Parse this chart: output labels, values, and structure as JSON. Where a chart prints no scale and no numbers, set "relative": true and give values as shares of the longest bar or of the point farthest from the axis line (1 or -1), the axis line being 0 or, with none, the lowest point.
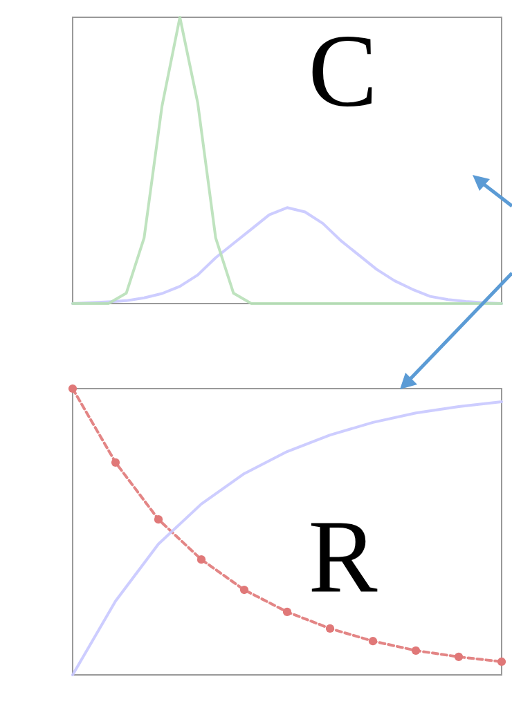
{
  "chart_data": [
    {
      "type": "line",
      "relative": true,
      "tick_labels": false,
      "annotations": [
        "C"
      ],
      "categories": [
        null,
        null,
        null,
        null,
        null,
        null,
        null,
        null,
        null,
        null,
        null,
        null,
        null,
        null,
        null,
        null,
        null,
        null,
        null,
        null,
        null,
        null,
        null,
        null,
        null
      ],
      "series": [
        {
          "color": "#c8c8ff",
          "values": [
            0,
            0.003,
            0.006,
            0.01,
            0.02,
            0.035,
            0.06,
            0.1,
            0.16,
            0.21,
            0.26,
            0.31,
            0.335,
            0.32,
            0.28,
            0.22,
            0.17,
            0.12,
            0.08,
            0.05,
            0.025,
            0.014,
            0.007,
            0.003,
            0
          ]
        },
        {
          "color": "#b8e0b8",
          "values": [
            0,
            0,
            0,
            0.036,
            0.23,
            0.69,
            1,
            0.7,
            0.23,
            0.036,
            0,
            0,
            0,
            0,
            0,
            0,
            0,
            0,
            0,
            0,
            0,
            0,
            0,
            0,
            0
          ]
        }
      ]
    },
    {
      "type": "line",
      "relative": true,
      "tick_labels": false,
      "annotations": [
        "R"
      ],
      "categories": [
        null,
        null,
        null,
        null,
        null,
        null,
        null,
        null,
        null,
        null,
        null
      ],
      "series": [
        {
          "color": "#e07878",
          "line_style": "dashed",
          "marker": "circle",
          "values": [
            1,
            0.742,
            0.543,
            0.403,
            0.297,
            0.22,
            0.162,
            0.118,
            0.085,
            0.063,
            0.046
          ]
        },
        {
          "color": "#c8c8ff",
          "values": [
            0,
            0.258,
            0.457,
            0.597,
            0.703,
            0.78,
            0.838,
            0.882,
            0.915,
            0.937,
            0.954
          ]
        }
      ]
    }
  ]
}
